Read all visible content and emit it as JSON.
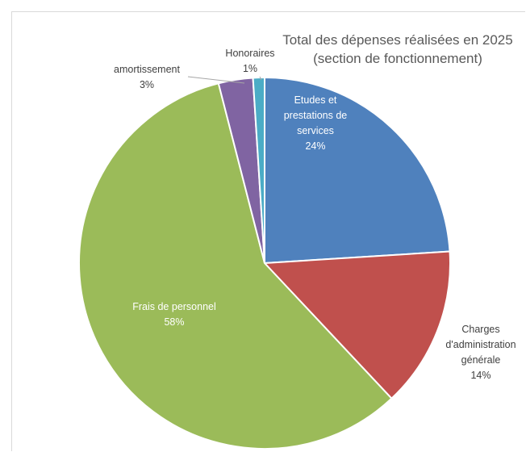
{
  "chart_data": {
    "type": "pie",
    "title_lines": [
      "Total des dépenses réalisées en 2025",
      "(section de fonctionnement)"
    ],
    "slices": [
      {
        "name": "Etudes et prestations de services",
        "label_lines": [
          "Etudes et",
          "prestations de",
          "services"
        ],
        "value": 24,
        "value_label": "24%",
        "color": "#4f81bd",
        "label_color": "#ffffff"
      },
      {
        "name": "Charges d'administration générale",
        "label_lines": [
          "Charges",
          "d'administration",
          "générale"
        ],
        "value": 14,
        "value_label": "14%",
        "color": "#c0504d",
        "label_color": "#404040"
      },
      {
        "name": "Frais de personnel",
        "label_lines": [
          "Frais de personnel"
        ],
        "value": 58,
        "value_label": "58%",
        "color": "#9bbb59",
        "label_color": "#ffffff"
      },
      {
        "name": "amortissement",
        "label_lines": [
          "amortissement"
        ],
        "value": 3,
        "value_label": "3%",
        "color": "#8064a2",
        "label_color": "#404040"
      },
      {
        "name": "Honoraires",
        "label_lines": [
          "Honoraires"
        ],
        "value": 1,
        "value_label": "1%",
        "color": "#4bacc6",
        "label_color": "#404040"
      }
    ]
  }
}
